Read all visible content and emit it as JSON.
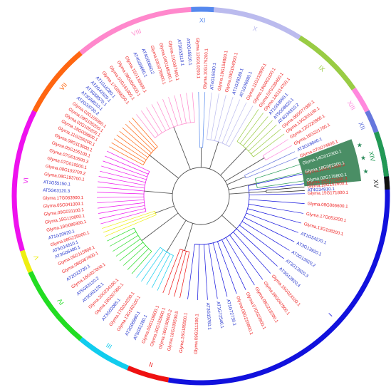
{
  "figure": {
    "clades": [
      {
        "id": "I",
        "label": "I",
        "color": "#1111dd",
        "start": 75,
        "end": 190
      },
      {
        "id": "II",
        "label": "II",
        "color": "#ee1111",
        "start": 190,
        "end": 203
      },
      {
        "id": "III",
        "label": "III",
        "color": "#11ccee",
        "start": 203,
        "end": 220
      },
      {
        "id": "IV",
        "label": "IV",
        "color": "#22dd22",
        "start": 220,
        "end": 246
      },
      {
        "id": "V",
        "label": "V",
        "color": "#eeee11",
        "start": 246,
        "end": 253
      },
      {
        "id": "VI",
        "label": "VI",
        "color": "#ee11ee",
        "start": 253,
        "end": 297
      },
      {
        "id": "VII",
        "label": "VII",
        "color": "#ff6611",
        "start": 297,
        "end": 320
      },
      {
        "id": "VIII",
        "label": "VIII",
        "color": "#ff88cc",
        "start": 320,
        "end": 357
      },
      {
        "id": "XI",
        "label": "XI",
        "color": "#5588ee",
        "start": 357,
        "end": 4
      },
      {
        "id": "X",
        "label": "X",
        "color": "#bbbbee",
        "start": 4,
        "end": 32
      },
      {
        "id": "IX",
        "label": "IX",
        "color": "#99cc44",
        "start": 32,
        "end": 55
      },
      {
        "id": "XIII",
        "label": "XIII",
        "color": "#ff88dd",
        "start": 55,
        "end": 63
      },
      {
        "id": "XII",
        "label": "XII",
        "color": "#6677dd",
        "start": 63,
        "end": 70
      },
      {
        "id": "XIV",
        "label": "XIV",
        "color": "#229955",
        "start": 70,
        "end": 84
      },
      {
        "id": "XV",
        "label": "XV",
        "color": "#111111",
        "start": 84,
        "end": 88
      }
    ],
    "leaves": [
      {
        "name": "Glyma.15G171800.2",
        "clade": "I"
      },
      {
        "name": "Glyma.15G171800.3",
        "clade": "I"
      },
      {
        "name": "Glyma.15G171800.1",
        "clade": "I"
      },
      {
        "name": "Glyma.09G066600.1",
        "clade": "I"
      },
      {
        "name": "Glyma.17G053200.1",
        "clade": "I"
      },
      {
        "name": "Glyma.13G108200.1",
        "clade": "I"
      },
      {
        "name": "AT1G54270.1",
        "clade": "I"
      },
      {
        "name": "AT3G13920.1",
        "clade": "I"
      },
      {
        "name": "AT3G13920.2",
        "clade": "I"
      },
      {
        "name": "AT3G13920.3",
        "clade": "I"
      },
      {
        "name": "AT3G13920.4",
        "clade": "I"
      },
      {
        "name": "Glyma.15G024100.1",
        "clade": "I"
      },
      {
        "name": "Glyma.06G047900.1",
        "clade": "I"
      },
      {
        "name": "Glyma.08G218200.1",
        "clade": "I"
      },
      {
        "name": "Glyma.07G023900.1",
        "clade": "I"
      },
      {
        "name": "Glyma.08G215800.1",
        "clade": "I"
      },
      {
        "name": "AT1G72730.1",
        "clade": "I"
      },
      {
        "name": "AT1G72540.1",
        "clade": "I"
      },
      {
        "name": "AT3G19760.1",
        "clade": "I"
      },
      {
        "name": "Glyma.09G211300.1",
        "clade": "I"
      },
      {
        "name": "Glyma.16G189500.1",
        "clade": "I"
      },
      {
        "name": "Glyma.16G189500.5",
        "clade": "II"
      },
      {
        "name": "Glyma.16G190600.2",
        "clade": "II"
      },
      {
        "name": "Glyma.20G155900.1",
        "clade": "II"
      },
      {
        "name": "Glyma.05G119800.1",
        "clade": "II"
      },
      {
        "name": "AT5G51280.1",
        "clade": "III"
      },
      {
        "name": "AT2G06990.1",
        "clade": "III"
      },
      {
        "name": "Glyma.13G160100.1",
        "clade": "III"
      },
      {
        "name": "Glyma.17G014200.1",
        "clade": "III"
      },
      {
        "name": "AT3G02065.1",
        "clade": "III"
      },
      {
        "name": "Glyma.18G007900.1",
        "clade": "IV"
      },
      {
        "name": "Glyma.20G234100.1",
        "clade": "IV"
      },
      {
        "name": "AT5G63120.1",
        "clade": "IV"
      },
      {
        "name": "AT5G63120.2",
        "clade": "IV"
      },
      {
        "name": "Glyma.18G037000.1",
        "clade": "IV"
      },
      {
        "name": "AT2G33730.1",
        "clade": "IV"
      },
      {
        "name": "Glyma.08G067400.1",
        "clade": "IV"
      },
      {
        "name": "Glyma.05G115800.1",
        "clade": "IV"
      },
      {
        "name": "AT3G06480.1",
        "clade": "V"
      },
      {
        "name": "AT5G14610.1",
        "clade": "V"
      },
      {
        "name": "Glyma.08G225000.1",
        "clade": "V"
      },
      {
        "name": "AT1G20920.1",
        "clade": "VI"
      },
      {
        "name": "Glyma.19G089300.1",
        "clade": "VI"
      },
      {
        "name": "Glyma.15G110000.1",
        "clade": "VI"
      },
      {
        "name": "Glyma.09G031100.1",
        "clade": "VI"
      },
      {
        "name": "Glyma.05G041000.1",
        "clade": "VI"
      },
      {
        "name": "Glyma.17G083900.1",
        "clade": "VI"
      },
      {
        "name": "AT5G63120.3",
        "clade": "VI"
      },
      {
        "name": "AT1G55150.1",
        "clade": "VI"
      },
      {
        "name": "Glyma.08G193700.1",
        "clade": "VI"
      },
      {
        "name": "Glyma.08G193700.2",
        "clade": "VI"
      },
      {
        "name": "Glyma.07G010500.1",
        "clade": "VI"
      },
      {
        "name": "Glyma.07G010500.3",
        "clade": "VI"
      },
      {
        "name": "Glyma.05G155100.1",
        "clade": "VI"
      },
      {
        "name": "Glyma.08G113000.1",
        "clade": "VI"
      },
      {
        "name": "Glyma.11G256200.1",
        "clade": "VI"
      },
      {
        "name": "Glyma.18G008800.1",
        "clade": "VII"
      },
      {
        "name": "Glyma.02G105200.1",
        "clade": "VII"
      },
      {
        "name": "Glyma.09G105200.1",
        "clade": "VII"
      },
      {
        "name": "Glyma.02G105000.1",
        "clade": "VII"
      },
      {
        "name": "AT2G33730.2",
        "clade": "VII"
      },
      {
        "name": "AT3G58510.1",
        "clade": "VII"
      },
      {
        "name": "AT3G58570.1",
        "clade": "VII"
      },
      {
        "name": "AT2G42520.1",
        "clade": "VII"
      },
      {
        "name": "AT1G16280.1",
        "clade": "VII"
      },
      {
        "name": "Glyma.17G089200.1",
        "clade": "VIII"
      },
      {
        "name": "Glyma.01G161900.1",
        "clade": "VIII"
      },
      {
        "name": "Glyma.09G054500.1",
        "clade": "VIII"
      },
      {
        "name": "Glyma.15G139600.1",
        "clade": "VIII"
      },
      {
        "name": "AT4G00660.1",
        "clade": "VIII"
      },
      {
        "name": "AT4G00660.2",
        "clade": "VIII"
      },
      {
        "name": "Glyma.03G076900.1",
        "clade": "VIII"
      },
      {
        "name": "Glyma.04G168300.1",
        "clade": "VIII"
      },
      {
        "name": "Glyma.11G007600.1",
        "clade": "VIII"
      },
      {
        "name": "AT3G53110.1",
        "clade": "VIII"
      },
      {
        "name": "AT2G45810.1",
        "clade": "VIII"
      },
      {
        "name": "Glyma.12G010200.1",
        "clade": "XI"
      },
      {
        "name": "Glyma.10G175200.1",
        "clade": "XI"
      },
      {
        "name": "AT4G16630.1",
        "clade": "X"
      },
      {
        "name": "Glyma.19G154800.1",
        "clade": "X"
      },
      {
        "name": "Glyma.03G154900.1",
        "clade": "X"
      },
      {
        "name": "AT1G28180.1",
        "clade": "X"
      },
      {
        "name": "AT1G06980.1",
        "clade": "X"
      },
      {
        "name": "Glyma.11G232800.1",
        "clade": "X"
      },
      {
        "name": "Glyma.18G003100.1",
        "clade": "X"
      },
      {
        "name": "Glyma.02G230400.1",
        "clade": "IX"
      },
      {
        "name": "Glyma.14G114700.1",
        "clade": "IX"
      },
      {
        "name": "AT1G59990.1",
        "clade": "IX"
      },
      {
        "name": "AT5G08620.1",
        "clade": "IX"
      },
      {
        "name": "AT4G34910.2",
        "clade": "IX"
      },
      {
        "name": "Glyma.06G077000.1",
        "clade": "IX"
      },
      {
        "name": "Glyma.13G305100.1",
        "clade": "IX"
      },
      {
        "name": "Glyma.12G220900.1",
        "clade": "XIII"
      },
      {
        "name": "Glyma.16G221700.1",
        "clade": "XIII"
      },
      {
        "name": "AT3G16840.1",
        "clade": "XII"
      },
      {
        "name": "Glyma.07G074800.1",
        "clade": "XII"
      },
      {
        "name": "Glyma.14G012300.1",
        "clade": "XIV"
      },
      {
        "name": "Glyma.18G002300.1",
        "clade": "XIV"
      },
      {
        "name": "Glyma.02G178800.1",
        "clade": "XIV"
      },
      {
        "name": "Glyma.10G152600.1",
        "clade": "XV"
      },
      {
        "name": "AT4G34910.1",
        "clade": "XV"
      }
    ],
    "colors": {
      "at_label": "#2233cc",
      "gm_label": "#ee2222",
      "trunk": "#555555",
      "highlight": "#2a7a4a",
      "star": "#2a8a5a"
    },
    "highlighted_leaves": [
      "Glyma.14G012300.1",
      "Glyma.18G002300.1",
      "Glyma.02G178800.1"
    ]
  }
}
